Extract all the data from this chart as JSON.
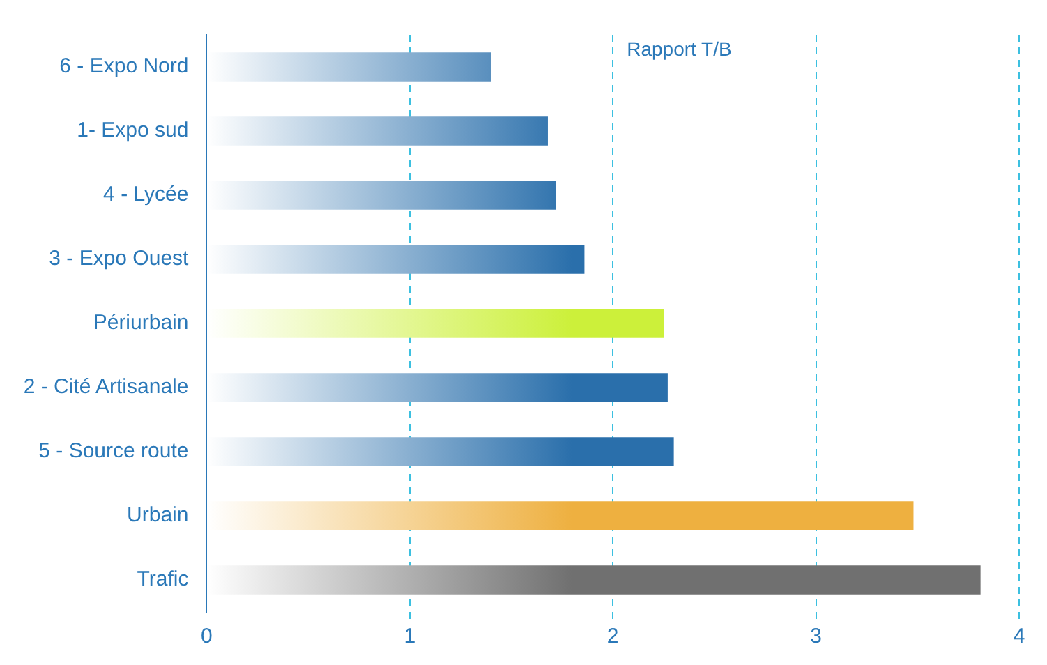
{
  "chart_data": {
    "type": "bar",
    "orientation": "horizontal",
    "title": "Rapport T/B",
    "categories": [
      "6 - Expo Nord",
      "1- Expo sud",
      "4 - Lycée",
      "3 - Expo Ouest",
      "Périurbain",
      "2 - Cité Artisanale",
      "5 - Source route",
      "Urbain",
      "Trafic"
    ],
    "values": [
      1.4,
      1.68,
      1.72,
      1.86,
      2.25,
      2.27,
      2.3,
      3.48,
      3.81
    ],
    "colors": [
      "#2a6fab",
      "#2a6fab",
      "#2a6fab",
      "#2a6fab",
      "#ccf03a",
      "#2a6fab",
      "#2a6fab",
      "#eeb040",
      "#707070"
    ],
    "xlim": [
      0,
      4
    ],
    "xticks": [
      0,
      1,
      2,
      3,
      4
    ],
    "grid": "x",
    "legend": false
  }
}
